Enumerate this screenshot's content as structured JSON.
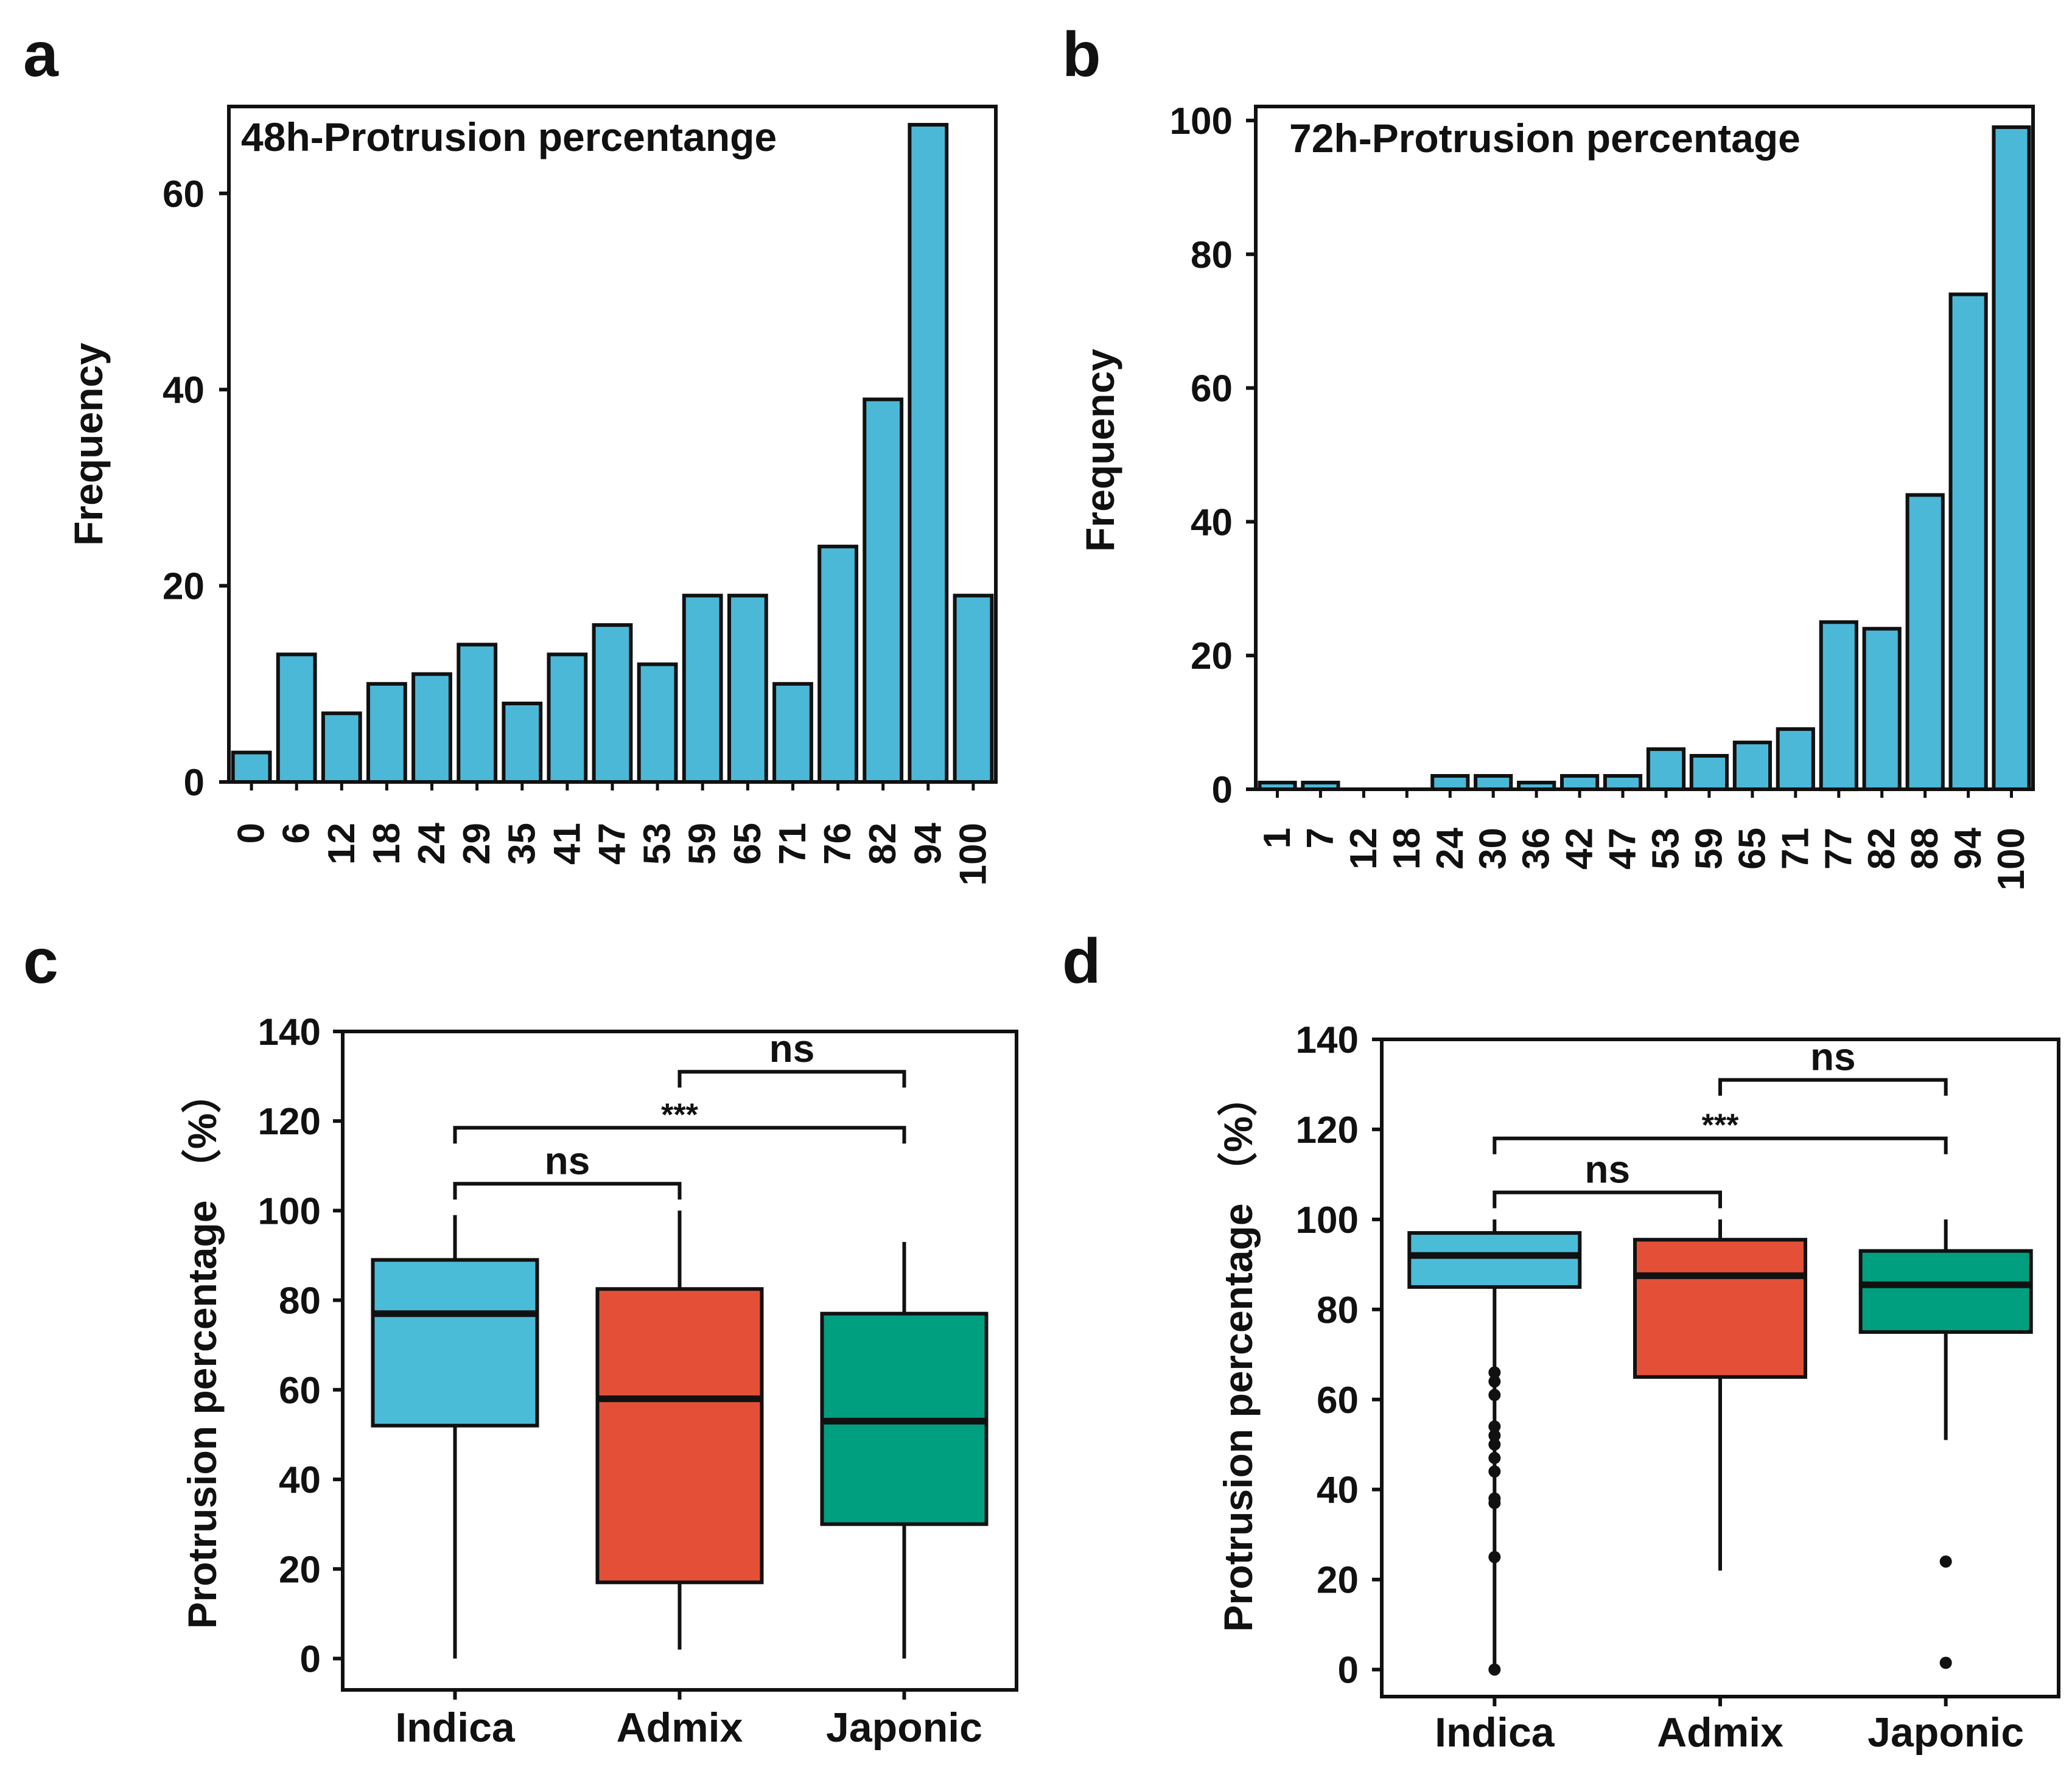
{
  "colors": {
    "bar": "#4bb8d8",
    "indica": "#4bbcd8",
    "admix": "#e45037",
    "japonic": "#009f80",
    "stroke": "#111111"
  },
  "panels": [
    {
      "letter": "a"
    },
    {
      "letter": "b"
    },
    {
      "letter": "c"
    },
    {
      "letter": "d"
    }
  ],
  "chart_data": [
    {
      "type": "bar",
      "title": "48h-Protrusion percentange",
      "xlabel": "",
      "ylabel": "Frequency",
      "categories": [
        "0",
        "6",
        "12",
        "18",
        "24",
        "29",
        "35",
        "41",
        "47",
        "53",
        "59",
        "65",
        "71",
        "76",
        "82",
        "94",
        "100"
      ],
      "values": [
        3,
        13,
        7,
        10,
        11,
        14,
        8,
        13,
        16,
        12,
        19,
        19,
        10,
        24,
        39,
        67,
        19
      ],
      "ylim": [
        0,
        67
      ],
      "yticks": [
        "0",
        "20",
        "40",
        "60"
      ]
    },
    {
      "type": "bar",
      "title": "72h-Protrusion percentage",
      "xlabel": "",
      "ylabel": "Frequency",
      "categories": [
        "1",
        "7",
        "12",
        "18",
        "24",
        "30",
        "36",
        "42",
        "47",
        "53",
        "59",
        "65",
        "71",
        "77",
        "82",
        "88",
        "94",
        "100"
      ],
      "values": [
        1,
        1,
        0,
        0,
        2,
        2,
        1,
        2,
        2,
        6,
        5,
        7,
        9,
        25,
        24,
        44,
        74,
        99
      ],
      "ylim": [
        0,
        100
      ],
      "yticks": [
        "0",
        "20",
        "40",
        "60",
        "80",
        "100"
      ]
    },
    {
      "type": "box",
      "xlabel": "",
      "ylabel": "Protrusion percentage （%）",
      "ylim": [
        -7,
        140
      ],
      "yticks": [
        "0",
        "20",
        "40",
        "60",
        "80",
        "100",
        "120",
        "140"
      ],
      "groups": [
        {
          "name": "Indica",
          "min": 0,
          "q1": 52,
          "median": 77,
          "q3": 89,
          "max": 99,
          "outliers": []
        },
        {
          "name": "Admix",
          "min": 2,
          "q1": 17,
          "median": 58,
          "q3": 82.5,
          "max": 100,
          "outliers": []
        },
        {
          "name": "Japonic",
          "min": 0,
          "q1": 30,
          "median": 53,
          "q3": 77,
          "max": 93,
          "outliers": []
        }
      ],
      "brackets": [
        {
          "from": 0,
          "to": 1,
          "y": 106,
          "label": "ns"
        },
        {
          "from": 0,
          "to": 2,
          "y": 118.5,
          "label": "***"
        },
        {
          "from": 1,
          "to": 2,
          "y": 131,
          "label": "ns"
        }
      ]
    },
    {
      "type": "box",
      "xlabel": "",
      "ylabel": "Protrusion percentage （%）",
      "ylim": [
        -6,
        140
      ],
      "yticks": [
        "0",
        "20",
        "40",
        "60",
        "80",
        "100",
        "120",
        "140"
      ],
      "groups": [
        {
          "name": "Indica",
          "min": 0,
          "q1": 85,
          "median": 92,
          "q3": 97,
          "max": 100,
          "outliers": [
            66,
            64,
            61,
            54,
            52,
            50,
            47,
            44,
            38,
            37,
            25,
            0
          ]
        },
        {
          "name": "Admix",
          "min": 22,
          "q1": 65,
          "median": 87.5,
          "q3": 95.5,
          "max": 100,
          "outliers": []
        },
        {
          "name": "Japonic",
          "min": 51,
          "q1": 75,
          "median": 85.5,
          "q3": 93,
          "max": 100,
          "outliers": [
            24,
            1.5
          ]
        }
      ],
      "brackets": [
        {
          "from": 0,
          "to": 1,
          "y": 106,
          "label": "ns"
        },
        {
          "from": 0,
          "to": 2,
          "y": 118,
          "label": "***"
        },
        {
          "from": 1,
          "to": 2,
          "y": 131,
          "label": "ns"
        }
      ]
    }
  ]
}
